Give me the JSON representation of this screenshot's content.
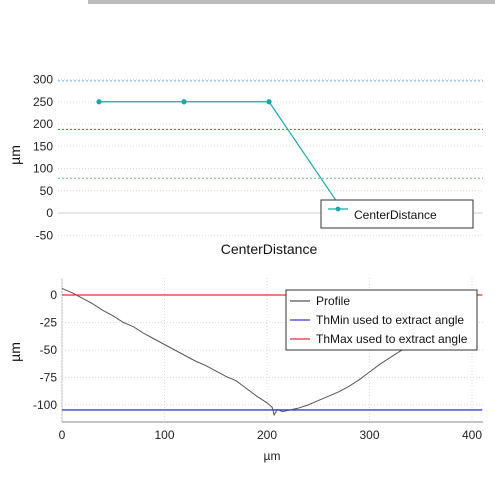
{
  "chart_data": [
    {
      "type": "line",
      "title": "CenterDistance",
      "xlabel": "",
      "ylabel": "µm",
      "ylim": [
        -55,
        305
      ],
      "yticks": [
        300,
        250,
        200,
        150,
        100,
        50,
        0,
        -50
      ],
      "grid": true,
      "legend_position": "bottom-right",
      "series": [
        {
          "name": "CenterDistance",
          "color": "#1aa8a8",
          "x": [
            1,
            2,
            3,
            4
          ],
          "y": [
            250,
            250,
            250,
            15
          ]
        }
      ],
      "reference_lines": [
        {
          "y": 297,
          "color": "#6fa8dc",
          "style": "dotted"
        },
        {
          "y": 188,
          "color": "#2e9a2e",
          "style": "dotted"
        },
        {
          "y": 78,
          "color": "#6fa8dc",
          "style": "dotted"
        }
      ]
    },
    {
      "type": "line",
      "title": "",
      "xlabel": "µm",
      "ylabel": "µm",
      "xlim": [
        0,
        410
      ],
      "ylim": [
        -110,
        8
      ],
      "xticks": [
        0,
        100,
        200,
        300,
        400
      ],
      "yticks": [
        0,
        -25,
        -50,
        -75,
        -100
      ],
      "grid": true,
      "legend_position": "top-right",
      "series": [
        {
          "name": "Profile",
          "color": "#555555",
          "x": [
            0,
            10,
            20,
            30,
            40,
            50,
            60,
            70,
            80,
            90,
            100,
            110,
            120,
            130,
            140,
            150,
            160,
            170,
            180,
            190,
            200,
            205,
            207,
            210,
            215,
            220,
            230,
            240,
            250,
            260,
            270,
            280,
            290,
            300,
            310,
            320,
            330,
            340,
            350
          ],
          "y": [
            6,
            2,
            -3,
            -8,
            -14,
            -19,
            -25,
            -29,
            -35,
            -40,
            -45,
            -50,
            -55,
            -60,
            -64,
            -69,
            -74,
            -78,
            -85,
            -92,
            -98,
            -102,
            -109,
            -104,
            -106,
            -105,
            -103,
            -100,
            -96,
            -92,
            -88,
            -83,
            -77,
            -70,
            -63,
            -57,
            -51,
            -46,
            -41
          ]
        },
        {
          "name": "ThMin used to extract angle",
          "color": "#3b3bdb",
          "x": [
            0,
            410
          ],
          "y": [
            -104.5,
            -104.5
          ]
        },
        {
          "name": "ThMax used to extract angle",
          "color": "#e03030",
          "x": [
            0,
            410
          ],
          "y": [
            0,
            0
          ]
        }
      ]
    }
  ]
}
